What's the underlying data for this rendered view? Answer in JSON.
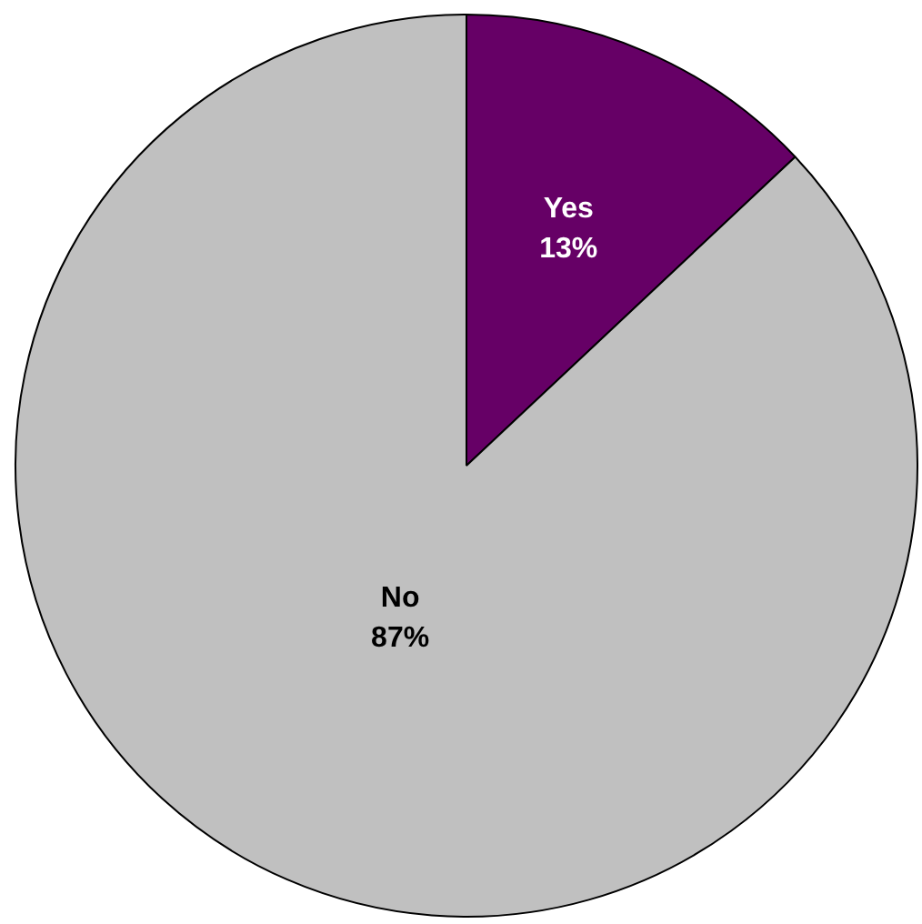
{
  "chart_data": {
    "type": "pie",
    "categories": [
      "Yes",
      "No"
    ],
    "values": [
      13,
      87
    ],
    "colors": [
      "#660066",
      "#c0c0c0"
    ],
    "value_labels": [
      "13%",
      "87%"
    ],
    "legend": false
  }
}
